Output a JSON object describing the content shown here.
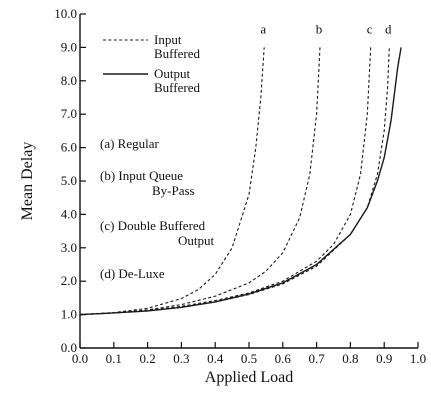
{
  "chart_data": {
    "type": "line",
    "xlabel": "Applied Load",
    "ylabel": "Mean Delay",
    "xlim": [
      0.0,
      1.0
    ],
    "ylim": [
      0.0,
      10.0
    ],
    "x_ticks": [
      "0.0",
      "0.1",
      "0.2",
      "0.3",
      "0.4",
      "0.5",
      "0.6",
      "0.7",
      "0.8",
      "0.9",
      "1.0"
    ],
    "y_ticks": [
      "0.0",
      "1.0",
      "2.0",
      "3.0",
      "4.0",
      "5.0",
      "6.0",
      "7.0",
      "8.0",
      "9.0",
      "10.0"
    ],
    "grid": false,
    "legend": {
      "placement": "top-left",
      "entries": [
        {
          "lines": [
            "Input",
            "Buffered"
          ],
          "style": "dashed"
        },
        {
          "lines": [
            "Output",
            "Buffered"
          ],
          "style": "solid"
        }
      ]
    },
    "notes": [
      {
        "lines": [
          "(a)  Regular"
        ]
      },
      {
        "lines": [
          "(b)  Input Queue",
          "By-Pass"
        ]
      },
      {
        "lines": [
          "(c)  Double Buffered",
          "Output"
        ]
      },
      {
        "lines": [
          "(d)  De-Luxe"
        ]
      }
    ],
    "series": [
      {
        "label": "a",
        "style": "dashed",
        "points": [
          [
            0.0,
            1.0
          ],
          [
            0.1,
            1.06
          ],
          [
            0.2,
            1.19
          ],
          [
            0.3,
            1.48
          ],
          [
            0.35,
            1.75
          ],
          [
            0.4,
            2.2
          ],
          [
            0.45,
            3.0
          ],
          [
            0.5,
            4.6
          ],
          [
            0.52,
            6.0
          ],
          [
            0.535,
            7.5
          ],
          [
            0.545,
            9.0
          ]
        ]
      },
      {
        "label": "b",
        "style": "dashed",
        "points": [
          [
            0.0,
            1.0
          ],
          [
            0.1,
            1.05
          ],
          [
            0.2,
            1.14
          ],
          [
            0.3,
            1.3
          ],
          [
            0.4,
            1.55
          ],
          [
            0.5,
            1.95
          ],
          [
            0.55,
            2.3
          ],
          [
            0.6,
            2.85
          ],
          [
            0.65,
            3.9
          ],
          [
            0.68,
            5.2
          ],
          [
            0.7,
            7.0
          ],
          [
            0.71,
            9.0
          ]
        ]
      },
      {
        "label": "c",
        "style": "dashed",
        "points": [
          [
            0.0,
            1.0
          ],
          [
            0.1,
            1.05
          ],
          [
            0.2,
            1.12
          ],
          [
            0.3,
            1.25
          ],
          [
            0.4,
            1.42
          ],
          [
            0.5,
            1.65
          ],
          [
            0.6,
            2.0
          ],
          [
            0.7,
            2.6
          ],
          [
            0.75,
            3.1
          ],
          [
            0.8,
            4.0
          ],
          [
            0.83,
            5.2
          ],
          [
            0.85,
            7.0
          ],
          [
            0.86,
            9.0
          ]
        ]
      },
      {
        "label": "d",
        "style": "dashed",
        "points": [
          [
            0.0,
            1.0
          ],
          [
            0.1,
            1.05
          ],
          [
            0.2,
            1.11
          ],
          [
            0.3,
            1.22
          ],
          [
            0.4,
            1.38
          ],
          [
            0.5,
            1.6
          ],
          [
            0.6,
            1.92
          ],
          [
            0.7,
            2.45
          ],
          [
            0.8,
            3.4
          ],
          [
            0.85,
            4.2
          ],
          [
            0.88,
            5.2
          ],
          [
            0.9,
            6.5
          ],
          [
            0.91,
            7.8
          ],
          [
            0.915,
            9.0
          ]
        ]
      },
      {
        "label": "",
        "style": "solid",
        "points": [
          [
            0.0,
            1.0
          ],
          [
            0.1,
            1.05
          ],
          [
            0.2,
            1.11
          ],
          [
            0.3,
            1.22
          ],
          [
            0.4,
            1.38
          ],
          [
            0.5,
            1.62
          ],
          [
            0.6,
            1.95
          ],
          [
            0.7,
            2.5
          ],
          [
            0.8,
            3.4
          ],
          [
            0.85,
            4.2
          ],
          [
            0.88,
            5.0
          ],
          [
            0.9,
            5.7
          ],
          [
            0.92,
            6.8
          ],
          [
            0.94,
            8.4
          ],
          [
            0.95,
            9.0
          ]
        ]
      }
    ]
  }
}
